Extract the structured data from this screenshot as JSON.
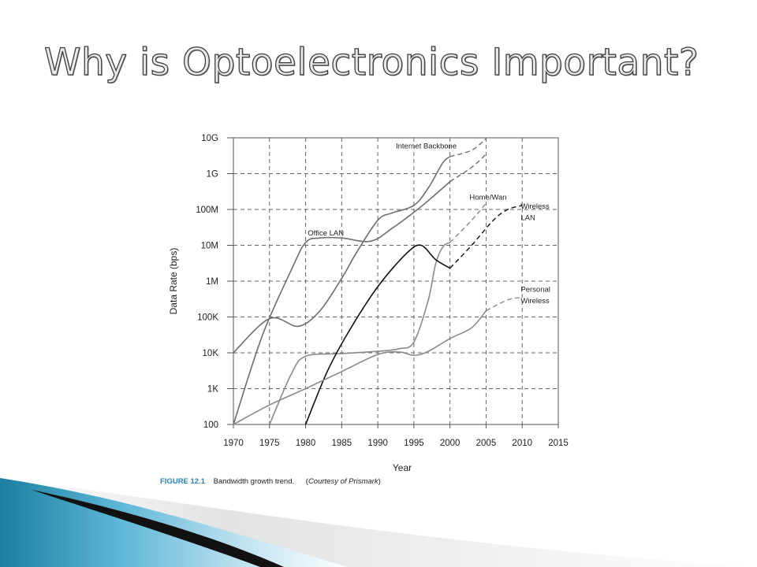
{
  "slide": {
    "title": "Why is Optoelectronics Important?"
  },
  "caption": {
    "figure": "FIGURE 12.1",
    "text": "Bandwidth growth trend.",
    "credit_prefix": "(",
    "credit": "Courtesy of Prismark",
    "credit_suffix": ")"
  },
  "colors": {
    "title_fill": "#e9e9e9",
    "title_stroke": "#3f3f3f",
    "caption_figure": "#2d7fb6",
    "decor_teal": "#1b7f9f"
  },
  "chart_data": {
    "type": "line",
    "title": "",
    "xlabel": "Year",
    "ylabel": "Data Rate (bps)",
    "y_scale": "log",
    "xlim": [
      1970,
      2015
    ],
    "ylim": [
      100,
      10000000000
    ],
    "x_ticks": [
      1970,
      1975,
      1980,
      1985,
      1990,
      1995,
      2000,
      2005,
      2010,
      2015
    ],
    "y_ticks": [
      {
        "value": 100,
        "label": "100"
      },
      {
        "value": 1000,
        "label": "1K"
      },
      {
        "value": 10000,
        "label": "10K"
      },
      {
        "value": 100000,
        "label": "100K"
      },
      {
        "value": 1000000,
        "label": "1M"
      },
      {
        "value": 10000000,
        "label": "10M"
      },
      {
        "value": 100000000,
        "label": "100M"
      },
      {
        "value": 1000000000,
        "label": "1G"
      },
      {
        "value": 10000000000,
        "label": "10G"
      }
    ],
    "grid": true,
    "legend": "none",
    "series": [
      {
        "name": "Office LAN",
        "color": "#6e6e6e",
        "points": [
          [
            1970,
            100
          ],
          [
            1974,
            30000
          ],
          [
            1978,
            2000000
          ],
          [
            1980,
            12000000
          ],
          [
            1982,
            16000000
          ],
          [
            1985,
            16000000
          ],
          [
            1989,
            13000000
          ],
          [
            1992,
            30000000
          ],
          [
            1996,
            120000000
          ],
          [
            2000,
            600000000
          ]
        ],
        "projection": [
          [
            2000,
            600000000
          ],
          [
            2003,
            1500000000
          ],
          [
            2005,
            3500000000
          ]
        ]
      },
      {
        "name": "Internet Backbone",
        "color": "#6e6e6e",
        "points": [
          [
            1970,
            10000
          ],
          [
            1975,
            90000
          ],
          [
            1979,
            55000
          ],
          [
            1982,
            150000
          ],
          [
            1985,
            1200000
          ],
          [
            1987,
            6000000
          ],
          [
            1990,
            50000000
          ],
          [
            1992,
            80000000
          ],
          [
            1995,
            130000000
          ],
          [
            1997,
            400000000
          ],
          [
            1999,
            2000000000
          ],
          [
            2000,
            3000000000
          ]
        ],
        "projection": [
          [
            2000,
            3000000000
          ],
          [
            2003,
            4500000000
          ],
          [
            2005,
            9500000000
          ]
        ]
      },
      {
        "name": "Home/Wan",
        "color": "#8a8a8a",
        "points": [
          [
            1975,
            100
          ],
          [
            1978,
            2500
          ],
          [
            1980,
            8000
          ],
          [
            1985,
            9500
          ],
          [
            1990,
            11000
          ],
          [
            1993,
            13000
          ],
          [
            1995,
            20000
          ],
          [
            1997,
            300000
          ],
          [
            1998,
            3000000
          ],
          [
            1999,
            9000000
          ],
          [
            2000,
            12000000
          ]
        ],
        "projection": [
          [
            2000,
            12000000
          ],
          [
            2003,
            50000000
          ],
          [
            2005,
            150000000
          ]
        ]
      },
      {
        "name": "Wireless LAN",
        "color": "#111111",
        "points": [
          [
            1980,
            100
          ],
          [
            1983,
            3000
          ],
          [
            1986,
            40000
          ],
          [
            1990,
            700000
          ],
          [
            1994,
            6000000
          ],
          [
            1996,
            10000000
          ],
          [
            1998,
            4000000
          ],
          [
            2000,
            2300000
          ]
        ],
        "projection": [
          [
            2000,
            2300000
          ],
          [
            2003,
            10000000
          ],
          [
            2006,
            50000000
          ],
          [
            2008,
            100000000
          ],
          [
            2010,
            130000000
          ]
        ]
      },
      {
        "name": "Personal Wireless",
        "color": "#8a8a8a",
        "points": [
          [
            1970,
            100
          ],
          [
            1975,
            350
          ],
          [
            1980,
            1000
          ],
          [
            1985,
            3000
          ],
          [
            1990,
            9000
          ],
          [
            1993,
            10500
          ],
          [
            1995,
            8500
          ],
          [
            1997,
            11000
          ],
          [
            2000,
            25000
          ],
          [
            2003,
            50000
          ],
          [
            2005,
            150000
          ]
        ],
        "projection": [
          [
            2005,
            150000
          ],
          [
            2008,
            300000
          ],
          [
            2010,
            350000
          ]
        ]
      }
    ],
    "annotations": [
      {
        "text": "Internet Backbone",
        "x": 1992.5,
        "y": 5000000000,
        "anchor": "start"
      },
      {
        "text": "Office LAN",
        "x": 1980.3,
        "y": 19000000,
        "anchor": "start"
      },
      {
        "text": "Home/Wan",
        "x": 2002.7,
        "y": 190000000,
        "anchor": "start"
      },
      {
        "text": "Wireless",
        "x": 2009.8,
        "y": 105000000,
        "anchor": "start"
      },
      {
        "text": "LAN",
        "x": 2009.8,
        "y": 50000000,
        "anchor": "start"
      },
      {
        "text": "Personal",
        "x": 2009.8,
        "y": 500000,
        "anchor": "start"
      },
      {
        "text": "Wireless",
        "x": 2009.8,
        "y": 240000,
        "anchor": "start"
      }
    ]
  }
}
